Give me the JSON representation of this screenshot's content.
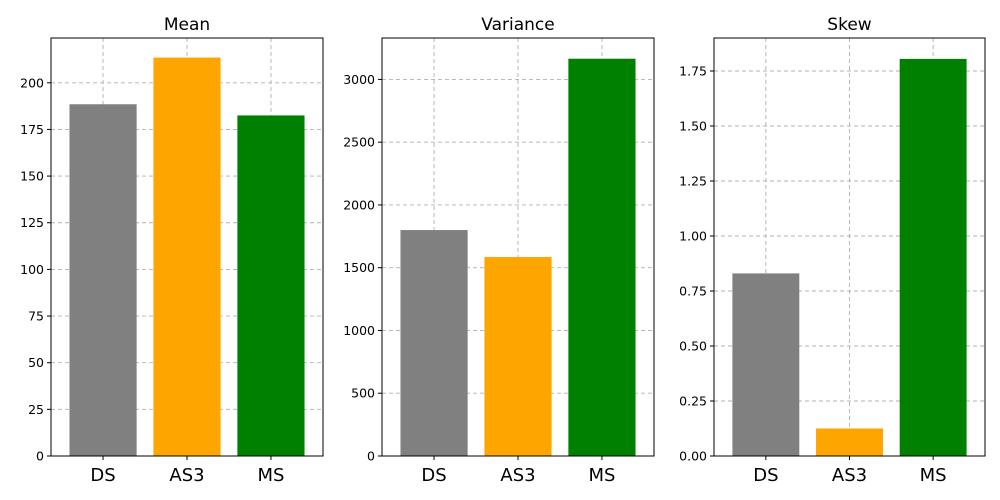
{
  "chart_data": [
    {
      "type": "bar",
      "title": "Mean",
      "categories": [
        "DS",
        "AS3",
        "MS"
      ],
      "values": [
        188.5,
        213.5,
        182.5
      ],
      "colors": [
        "#808080",
        "#ffa500",
        "#008000"
      ],
      "ylim": [
        0,
        224
      ],
      "yticks": [
        0,
        25,
        50,
        75,
        100,
        125,
        150,
        175,
        200
      ],
      "ytick_labels": [
        "0",
        "25",
        "50",
        "75",
        "100",
        "125",
        "150",
        "175",
        "200"
      ],
      "grid": true
    },
    {
      "type": "bar",
      "title": "Variance",
      "categories": [
        "DS",
        "AS3",
        "MS"
      ],
      "values": [
        1800,
        1585,
        3165
      ],
      "colors": [
        "#808080",
        "#ffa500",
        "#008000"
      ],
      "ylim": [
        0,
        3330
      ],
      "yticks": [
        0,
        500,
        1000,
        1500,
        2000,
        2500,
        3000
      ],
      "ytick_labels": [
        "0",
        "500",
        "1000",
        "1500",
        "2000",
        "2500",
        "3000"
      ],
      "grid": true
    },
    {
      "type": "bar",
      "title": "Skew",
      "categories": [
        "DS",
        "AS3",
        "MS"
      ],
      "values": [
        0.83,
        0.125,
        1.805
      ],
      "colors": [
        "#808080",
        "#ffa500",
        "#008000"
      ],
      "ylim": [
        0,
        1.9
      ],
      "yticks": [
        0,
        0.25,
        0.5,
        0.75,
        1.0,
        1.25,
        1.5,
        1.75
      ],
      "ytick_labels": [
        "0.00",
        "0.25",
        "0.50",
        "0.75",
        "1.00",
        "1.25",
        "1.50",
        "1.75"
      ],
      "grid": true
    }
  ]
}
